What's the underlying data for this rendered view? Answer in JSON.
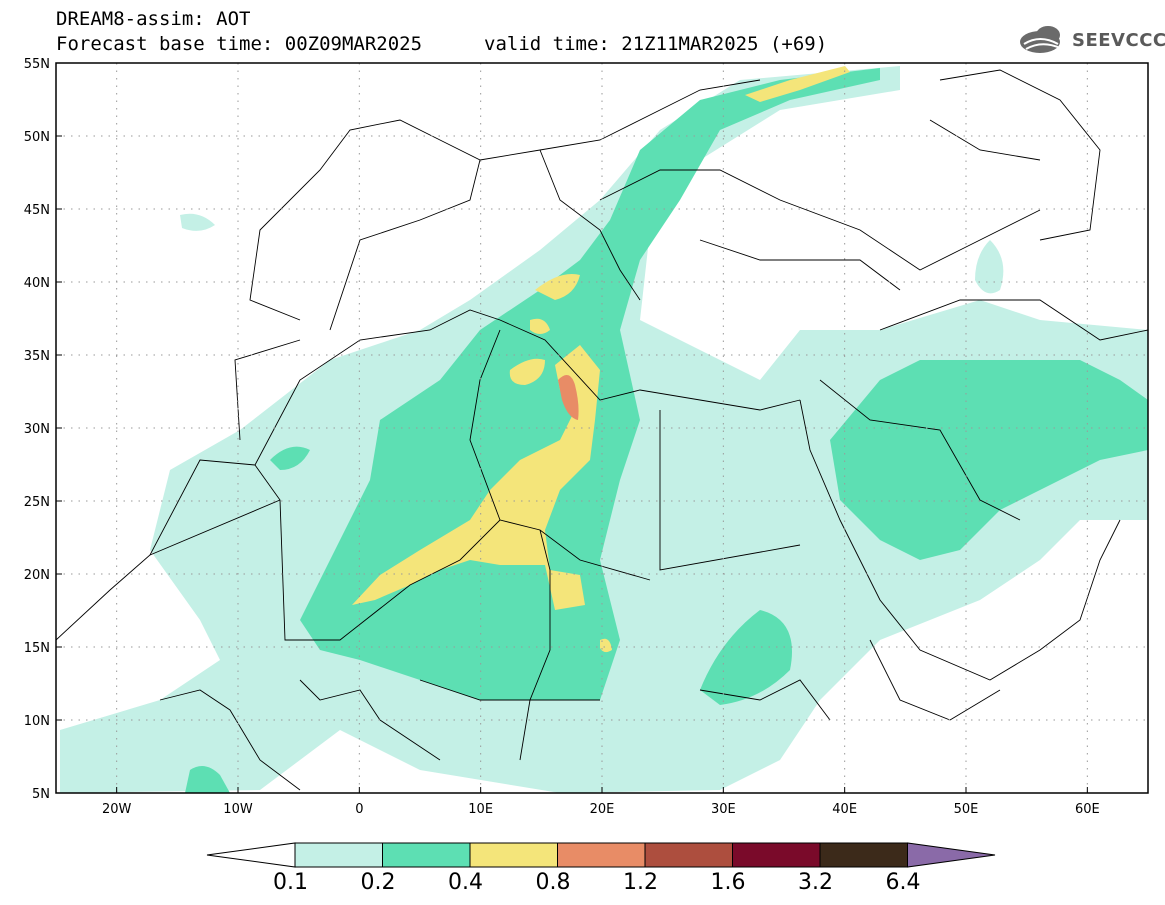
{
  "header": {
    "model_line": "DREAM8-assim: AOT",
    "base_time": "Forecast base time: 00Z09MAR2025",
    "valid_time": "valid time: 21Z11MAR2025 (+69)"
  },
  "logo": {
    "text": "SEEVCCC",
    "icon": "cloud-logo-icon"
  },
  "map": {
    "lon_range": [
      -25,
      65
    ],
    "lat_range": [
      5,
      55
    ],
    "lon_ticks": [
      "20W",
      "10W",
      "0",
      "10E",
      "20E",
      "30E",
      "40E",
      "50E",
      "60E"
    ],
    "lat_ticks": [
      "5N",
      "10N",
      "15N",
      "20N",
      "25N",
      "30N",
      "35N",
      "40N",
      "45N",
      "50N",
      "55N"
    ],
    "grid": "dotted"
  },
  "colorbar": {
    "levels": [
      "0.1",
      "0.2",
      "0.4",
      "0.8",
      "1.2",
      "1.6",
      "3.2",
      "6.4"
    ],
    "colors": [
      "#ffffff",
      "#c4f0e6",
      "#5ddfb3",
      "#f4e57a",
      "#e88c66",
      "#ad4e3e",
      "#7a0a2a",
      "#3c2a1a",
      "#8a6aa8"
    ]
  }
}
